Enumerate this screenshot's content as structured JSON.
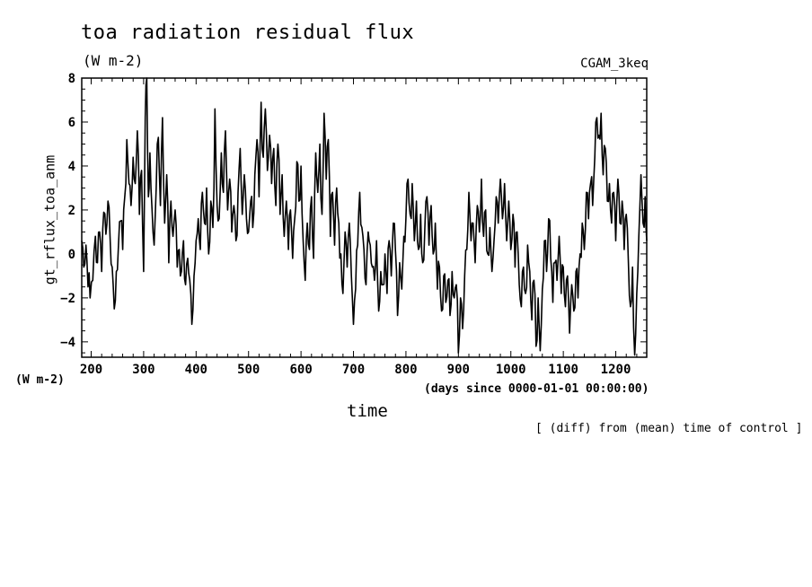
{
  "chart_data": {
    "type": "line",
    "title": "toa radiation residual flux",
    "subtitle": "(W m-2)",
    "run_label": "CGAM_3keq",
    "ylabel": "gt_rflux_toa_anm",
    "y_units": "(W m-2)",
    "xlabel": "time",
    "x_units": "(days since 0000-01-01 00:00:00)",
    "note": "[ (diff) from (mean) time of control ]",
    "xlim": [
      182,
      1259
    ],
    "ylim": [
      -4.7,
      8
    ],
    "x_ticks": [
      200,
      300,
      400,
      500,
      600,
      700,
      800,
      900,
      1000,
      1100,
      1200
    ],
    "y_ticks": [
      -4,
      -2,
      0,
      2,
      4,
      6,
      8
    ],
    "grid": false,
    "series": [
      {
        "color": "#000000",
        "anchors": [
          [
            182,
            0.6
          ],
          [
            186,
            -0.6
          ],
          [
            190,
            0.4
          ],
          [
            194,
            -1.5
          ],
          [
            198,
            -2.0
          ],
          [
            203,
            -1.2
          ],
          [
            208,
            0.8
          ],
          [
            212,
            -0.4
          ],
          [
            216,
            1.0
          ],
          [
            220,
            -0.8
          ],
          [
            224,
            1.9
          ],
          [
            228,
            0.9
          ],
          [
            232,
            2.4
          ],
          [
            236,
            0.8
          ],
          [
            240,
            -0.6
          ],
          [
            244,
            -2.5
          ],
          [
            248,
            -0.8
          ],
          [
            252,
            0.4
          ],
          [
            256,
            1.5
          ],
          [
            260,
            0.2
          ],
          [
            264,
            2.6
          ],
          [
            268,
            5.2
          ],
          [
            272,
            3.2
          ],
          [
            276,
            2.2
          ],
          [
            280,
            4.4
          ],
          [
            284,
            3.2
          ],
          [
            288,
            5.6
          ],
          [
            292,
            1.8
          ],
          [
            296,
            3.8
          ],
          [
            300,
            -0.8
          ],
          [
            303,
            6.2
          ],
          [
            306,
            8.0
          ],
          [
            309,
            2.6
          ],
          [
            312,
            4.6
          ],
          [
            316,
            2.0
          ],
          [
            320,
            0.4
          ],
          [
            324,
            3.0
          ],
          [
            328,
            5.3
          ],
          [
            332,
            2.2
          ],
          [
            336,
            6.2
          ],
          [
            340,
            1.4
          ],
          [
            344,
            3.6
          ],
          [
            348,
            -0.4
          ],
          [
            352,
            2.4
          ],
          [
            356,
            0.8
          ],
          [
            360,
            2.0
          ],
          [
            364,
            -0.6
          ],
          [
            368,
            0.2
          ],
          [
            372,
            -0.8
          ],
          [
            376,
            0.6
          ],
          [
            380,
            -1.4
          ],
          [
            384,
            -0.2
          ],
          [
            388,
            -1.2
          ],
          [
            392,
            -3.2
          ],
          [
            396,
            -1.0
          ],
          [
            400,
            0.6
          ],
          [
            404,
            1.6
          ],
          [
            408,
            0.2
          ],
          [
            412,
            2.8
          ],
          [
            416,
            1.4
          ],
          [
            420,
            3.0
          ],
          [
            424,
            0.0
          ],
          [
            428,
            2.4
          ],
          [
            432,
            1.2
          ],
          [
            436,
            6.6
          ],
          [
            440,
            2.2
          ],
          [
            444,
            1.6
          ],
          [
            448,
            4.6
          ],
          [
            452,
            2.8
          ],
          [
            456,
            5.6
          ],
          [
            460,
            2.0
          ],
          [
            464,
            3.4
          ],
          [
            468,
            1.0
          ],
          [
            472,
            2.2
          ],
          [
            476,
            0.6
          ],
          [
            480,
            2.8
          ],
          [
            484,
            4.8
          ],
          [
            488,
            1.8
          ],
          [
            492,
            3.6
          ],
          [
            496,
            1.6
          ],
          [
            500,
            1.0
          ],
          [
            504,
            2.4
          ],
          [
            508,
            1.2
          ],
          [
            512,
            3.6
          ],
          [
            516,
            5.2
          ],
          [
            520,
            2.6
          ],
          [
            524,
            6.9
          ],
          [
            528,
            4.4
          ],
          [
            532,
            6.6
          ],
          [
            536,
            3.8
          ],
          [
            540,
            5.4
          ],
          [
            544,
            3.2
          ],
          [
            548,
            4.8
          ],
          [
            552,
            2.2
          ],
          [
            556,
            5.0
          ],
          [
            560,
            1.8
          ],
          [
            564,
            3.6
          ],
          [
            568,
            0.8
          ],
          [
            572,
            2.4
          ],
          [
            576,
            0.2
          ],
          [
            580,
            2.0
          ],
          [
            584,
            -0.2
          ],
          [
            588,
            1.6
          ],
          [
            592,
            4.2
          ],
          [
            596,
            2.4
          ],
          [
            600,
            4.0
          ],
          [
            604,
            0.6
          ],
          [
            608,
            -1.2
          ],
          [
            612,
            1.4
          ],
          [
            616,
            0.2
          ],
          [
            620,
            2.6
          ],
          [
            624,
            -0.2
          ],
          [
            628,
            4.6
          ],
          [
            632,
            2.8
          ],
          [
            636,
            5.0
          ],
          [
            640,
            1.8
          ],
          [
            644,
            6.4
          ],
          [
            648,
            3.4
          ],
          [
            652,
            5.2
          ],
          [
            656,
            0.8
          ],
          [
            660,
            2.8
          ],
          [
            664,
            0.4
          ],
          [
            668,
            3.0
          ],
          [
            672,
            1.4
          ],
          [
            676,
            0.0
          ],
          [
            680,
            -1.8
          ],
          [
            684,
            1.0
          ],
          [
            688,
            -0.6
          ],
          [
            692,
            1.4
          ],
          [
            696,
            -1.0
          ],
          [
            700,
            -3.2
          ],
          [
            704,
            -1.6
          ],
          [
            708,
            0.4
          ],
          [
            712,
            2.8
          ],
          [
            716,
            1.2
          ],
          [
            720,
            0.2
          ],
          [
            724,
            -1.4
          ],
          [
            728,
            1.0
          ],
          [
            732,
            0.4
          ],
          [
            736,
            -0.6
          ],
          [
            740,
            -1.2
          ],
          [
            744,
            0.6
          ],
          [
            748,
            -2.6
          ],
          [
            752,
            -0.8
          ],
          [
            756,
            -1.4
          ],
          [
            760,
            0.0
          ],
          [
            764,
            -1.8
          ],
          [
            768,
            0.6
          ],
          [
            772,
            -1.0
          ],
          [
            776,
            1.4
          ],
          [
            780,
            0.2
          ],
          [
            784,
            -2.8
          ],
          [
            788,
            -0.4
          ],
          [
            792,
            -1.6
          ],
          [
            796,
            0.8
          ],
          [
            800,
            1.6
          ],
          [
            804,
            3.4
          ],
          [
            808,
            1.8
          ],
          [
            812,
            3.2
          ],
          [
            816,
            0.6
          ],
          [
            820,
            2.4
          ],
          [
            824,
            0.2
          ],
          [
            828,
            1.8
          ],
          [
            832,
            -0.4
          ],
          [
            836,
            1.2
          ],
          [
            840,
            2.6
          ],
          [
            844,
            0.4
          ],
          [
            848,
            2.2
          ],
          [
            852,
            0.0
          ],
          [
            856,
            1.4
          ],
          [
            860,
            -1.6
          ],
          [
            864,
            -0.6
          ],
          [
            868,
            -2.6
          ],
          [
            872,
            -1.0
          ],
          [
            876,
            -2.2
          ],
          [
            880,
            -1.2
          ],
          [
            884,
            -2.8
          ],
          [
            888,
            -0.8
          ],
          [
            892,
            -2.0
          ],
          [
            896,
            -1.4
          ],
          [
            900,
            -4.5
          ],
          [
            904,
            -2.0
          ],
          [
            908,
            -3.4
          ],
          [
            912,
            -1.0
          ],
          [
            916,
            0.2
          ],
          [
            920,
            2.8
          ],
          [
            924,
            0.6
          ],
          [
            928,
            1.4
          ],
          [
            932,
            -0.4
          ],
          [
            936,
            2.2
          ],
          [
            940,
            1.0
          ],
          [
            944,
            3.4
          ],
          [
            948,
            0.8
          ],
          [
            952,
            2.0
          ],
          [
            956,
            0.0
          ],
          [
            960,
            1.2
          ],
          [
            964,
            -0.8
          ],
          [
            968,
            0.6
          ],
          [
            972,
            2.6
          ],
          [
            976,
            1.4
          ],
          [
            980,
            3.4
          ],
          [
            984,
            1.6
          ],
          [
            988,
            3.2
          ],
          [
            992,
            0.6
          ],
          [
            996,
            2.4
          ],
          [
            1000,
            0.2
          ],
          [
            1004,
            1.8
          ],
          [
            1008,
            -0.6
          ],
          [
            1012,
            1.0
          ],
          [
            1016,
            -1.4
          ],
          [
            1020,
            -2.4
          ],
          [
            1024,
            -0.6
          ],
          [
            1028,
            -1.8
          ],
          [
            1032,
            0.4
          ],
          [
            1036,
            -0.8
          ],
          [
            1040,
            -3.0
          ],
          [
            1044,
            -1.2
          ],
          [
            1048,
            -4.2
          ],
          [
            1052,
            -2.0
          ],
          [
            1056,
            -4.4
          ],
          [
            1060,
            -1.6
          ],
          [
            1064,
            0.6
          ],
          [
            1068,
            -0.8
          ],
          [
            1072,
            1.6
          ],
          [
            1076,
            -0.2
          ],
          [
            1080,
            -2.2
          ],
          [
            1084,
            -0.4
          ],
          [
            1088,
            -1.2
          ],
          [
            1092,
            0.8
          ],
          [
            1096,
            -1.8
          ],
          [
            1100,
            -0.6
          ],
          [
            1104,
            -2.4
          ],
          [
            1108,
            -1.0
          ],
          [
            1112,
            -3.6
          ],
          [
            1116,
            -1.4
          ],
          [
            1120,
            -2.6
          ],
          [
            1124,
            -0.8
          ],
          [
            1128,
            -2.0
          ],
          [
            1132,
            0.0
          ],
          [
            1136,
            1.4
          ],
          [
            1140,
            0.2
          ],
          [
            1144,
            2.8
          ],
          [
            1148,
            1.6
          ],
          [
            1152,
            3.2
          ],
          [
            1156,
            2.2
          ],
          [
            1160,
            4.4
          ],
          [
            1164,
            6.2
          ],
          [
            1168,
            5.4
          ],
          [
            1172,
            6.4
          ],
          [
            1176,
            3.6
          ],
          [
            1180,
            4.8
          ],
          [
            1184,
            2.4
          ],
          [
            1188,
            3.2
          ],
          [
            1192,
            1.4
          ],
          [
            1196,
            2.8
          ],
          [
            1200,
            0.6
          ],
          [
            1204,
            3.4
          ],
          [
            1208,
            1.4
          ],
          [
            1212,
            2.4
          ],
          [
            1216,
            0.2
          ],
          [
            1220,
            1.8
          ],
          [
            1224,
            -0.4
          ],
          [
            1228,
            -2.4
          ],
          [
            1232,
            -0.6
          ],
          [
            1236,
            -4.6
          ],
          [
            1240,
            -1.8
          ],
          [
            1244,
            0.8
          ],
          [
            1248,
            3.6
          ],
          [
            1252,
            1.4
          ],
          [
            1256,
            2.6
          ],
          [
            1259,
            0.6
          ]
        ]
      }
    ]
  }
}
